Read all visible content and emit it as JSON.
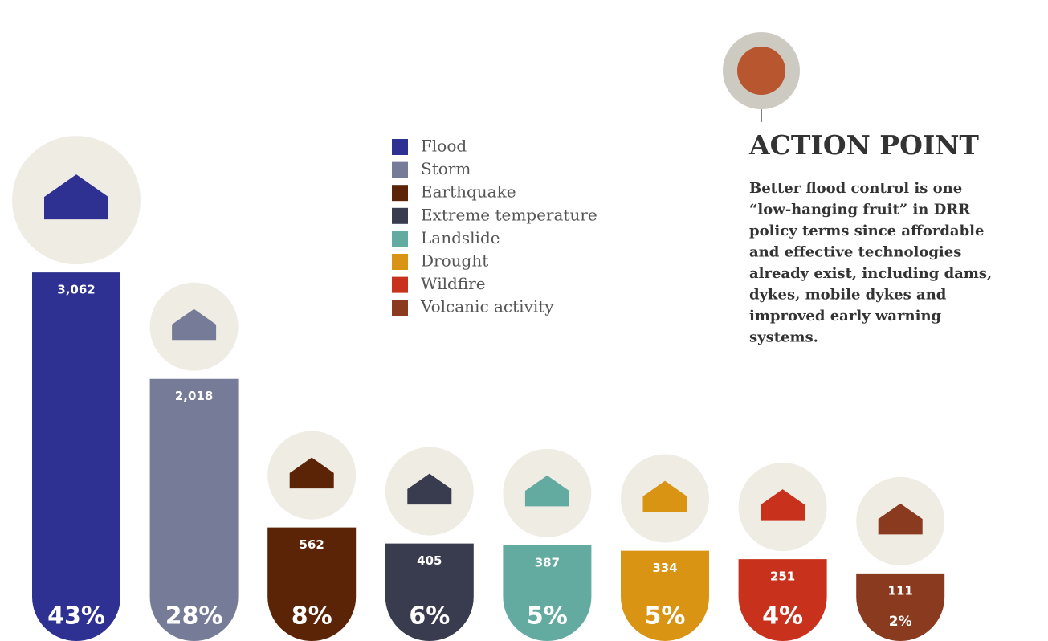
{
  "chart_data": {
    "type": "bar",
    "categories": [
      "Flood",
      "Storm",
      "Earthquake",
      "Extreme temperature",
      "Landslide",
      "Drought",
      "Wildfire",
      "Volcanic activity"
    ],
    "values": [
      3062,
      2018,
      562,
      405,
      387,
      334,
      251,
      111
    ],
    "value_labels": [
      "3,062",
      "2,018",
      "562",
      "405",
      "387",
      "334",
      "251",
      "111"
    ],
    "shares": [
      43,
      28,
      8,
      6,
      5,
      5,
      4,
      2
    ],
    "share_labels": [
      "43%",
      "28%",
      "8%",
      "6%",
      "5%",
      "5%",
      "4%",
      "2%"
    ],
    "colors": [
      "#2e3192",
      "#767b98",
      "#5c2406",
      "#393c4e",
      "#63aba0",
      "#d99414",
      "#c8311c",
      "#8a3a1e"
    ],
    "legend": "top"
  },
  "action_point": {
    "title": "ACTION POINT",
    "body_lines": [
      "Better flood control is one",
      "“low-hanging fruit” in DRR",
      "policy terms since affordable",
      "and effective technologies",
      "already exist, including dams,",
      "dykes, mobile dykes and",
      "improved early warning",
      "systems."
    ]
  }
}
